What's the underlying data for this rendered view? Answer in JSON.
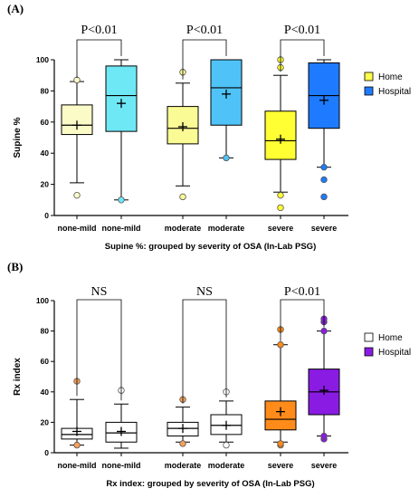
{
  "chart_data": [
    {
      "type": "box",
      "panel_label": "(A)",
      "xlabel": "Supine %: grouped by severity of OSA (In-Lab PSG)",
      "ylabel": "Supine %",
      "ylim": [
        0,
        100
      ],
      "yticks": [
        0,
        20,
        40,
        60,
        80,
        100
      ],
      "legend": {
        "position": "right",
        "entries": [
          {
            "name": "Home",
            "color": "#ffff4d"
          },
          {
            "name": "Hospital",
            "color": "#1e7bff"
          }
        ]
      },
      "categories": [
        "none-mild",
        "none-mild",
        "moderate",
        "moderate",
        "severe",
        "severe"
      ],
      "boxes": [
        {
          "group": "Home",
          "category": "none-mild",
          "fill": "#fbfbc8",
          "outlier_color": "#fbfbc8",
          "whisker_low": 21,
          "q1": 52,
          "median": 58,
          "q3": 71,
          "whisker_high": 86,
          "mean": 58,
          "outliers": [
            13,
            87
          ]
        },
        {
          "group": "Hospital",
          "category": "none-mild",
          "fill": "#6fe8f5",
          "outlier_color": "#6fe8f5",
          "whisker_low": 10,
          "q1": 54,
          "median": 77,
          "q3": 96,
          "whisker_high": 100,
          "mean": 72,
          "outliers": [
            10
          ]
        },
        {
          "group": "Home",
          "category": "moderate",
          "fill": "#fbfb95",
          "outlier_color": "#fbfb95",
          "whisker_low": 19,
          "q1": 46,
          "median": 56,
          "q3": 70,
          "whisker_high": 85,
          "mean": 57,
          "outliers": [
            12,
            92
          ]
        },
        {
          "group": "Hospital",
          "category": "moderate",
          "fill": "#4fc3f7",
          "outlier_color": "#4fc3f7",
          "whisker_low": 37,
          "q1": 58,
          "median": 82,
          "q3": 100,
          "whisker_high": 100,
          "mean": 78,
          "outliers": [
            37
          ]
        },
        {
          "group": "Home",
          "category": "severe",
          "fill": "#ffff33",
          "outlier_color": "#ffff33",
          "whisker_low": 15,
          "q1": 36,
          "median": 48,
          "q3": 67,
          "whisker_high": 90,
          "mean": 49,
          "outliers": [
            5,
            13,
            95,
            100
          ]
        },
        {
          "group": "Hospital",
          "category": "severe",
          "fill": "#1e7bff",
          "outlier_color": "#1e7bff",
          "whisker_low": 31,
          "q1": 56,
          "median": 77,
          "q3": 98,
          "whisker_high": 100,
          "mean": 74,
          "outliers": [
            12,
            23,
            31
          ]
        }
      ],
      "brackets": [
        {
          "from": 0,
          "to": 1,
          "label": "P<0.01"
        },
        {
          "from": 2,
          "to": 3,
          "label": "P<0.01"
        },
        {
          "from": 4,
          "to": 5,
          "label": "P<0.01"
        }
      ]
    },
    {
      "type": "box",
      "panel_label": "(B)",
      "xlabel": "Rx index: grouped by severity of OSA (In-Lab PSG)",
      "ylabel": "Rx index",
      "ylim": [
        0,
        100
      ],
      "yticks": [
        0,
        20,
        40,
        60,
        80,
        100
      ],
      "legend": {
        "position": "right",
        "entries": [
          {
            "name": "Home",
            "color": "#ffffff"
          },
          {
            "name": "Hospital",
            "color": "#8a1be3"
          }
        ]
      },
      "categories": [
        "none-mild",
        "none-mild",
        "moderate",
        "moderate",
        "severe",
        "severe"
      ],
      "boxes": [
        {
          "group": "Home",
          "category": "none-mild",
          "fill": "#ffffff",
          "outlier_color": "#f5a05a",
          "whisker_low": 5,
          "q1": 9,
          "median": 12,
          "q3": 16,
          "whisker_high": 35,
          "mean": 14,
          "outliers": [
            5,
            47
          ]
        },
        {
          "group": "Hospital",
          "category": "none-mild",
          "fill": "#ffffff",
          "outlier_color": "#ffffff",
          "whisker_low": 3,
          "q1": 7,
          "median": 13,
          "q3": 20,
          "whisker_high": 32,
          "mean": 14,
          "outliers": [
            41
          ]
        },
        {
          "group": "Home",
          "category": "moderate",
          "fill": "#ffffff",
          "outlier_color": "#f5a05a",
          "whisker_low": 7,
          "q1": 11,
          "median": 16,
          "q3": 20,
          "whisker_high": 30,
          "mean": 16,
          "outliers": [
            6,
            35
          ]
        },
        {
          "group": "Hospital",
          "category": "moderate",
          "fill": "#ffffff",
          "outlier_color": "#ffffff",
          "whisker_low": 7,
          "q1": 12,
          "median": 18,
          "q3": 25,
          "whisker_high": 34,
          "mean": 18,
          "outliers": [
            5,
            40
          ]
        },
        {
          "group": "Home",
          "category": "severe",
          "fill": "#ff8c1a",
          "outlier_color": "#ff8c1a",
          "whisker_low": 7,
          "q1": 15,
          "median": 22,
          "q3": 34,
          "whisker_high": 71,
          "mean": 27,
          "outliers": [
            5,
            6,
            71,
            81
          ]
        },
        {
          "group": "Hospital",
          "category": "severe",
          "fill": "#8a1be3",
          "outlier_color": "#8a1be3",
          "whisker_low": 11,
          "q1": 25,
          "median": 40,
          "q3": 55,
          "whisker_high": 80,
          "mean": 41,
          "outliers": [
            9,
            11,
            80,
            86,
            88
          ]
        }
      ],
      "brackets": [
        {
          "from": 0,
          "to": 1,
          "label": "NS"
        },
        {
          "from": 2,
          "to": 3,
          "label": "NS"
        },
        {
          "from": 4,
          "to": 5,
          "label": "P<0.01"
        }
      ]
    }
  ]
}
